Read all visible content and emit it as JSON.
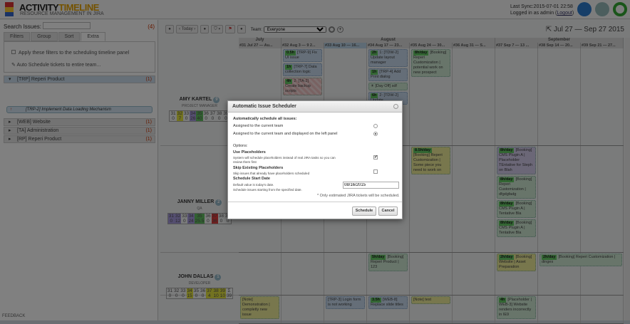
{
  "header": {
    "logo_a": "ACTIVITY",
    "logo_b": "TIMELINE",
    "tagline": "RESOURCE MANAGEMENT IN JIRA",
    "sync": "Last Sync:2015-07-01 22:58",
    "logged": "Logged in as admin (",
    "logout": "Logout",
    ")": ")",
    "close_paren": ")"
  },
  "left": {
    "search_label": "Search Issues:",
    "search_value": "",
    "count": "(4)",
    "tabs": [
      "Filters",
      "Group",
      "Sort",
      "Extra"
    ],
    "apply_filters": "Apply these filters to the scheduling timeline panel",
    "auto_schedule": "Auto Schedule tickets to entire team...",
    "groups": [
      {
        "label": "[TRP] Reperi Product",
        "count": "(1)"
      },
      {
        "label": "[WEB] Website",
        "count": "(1)"
      },
      {
        "label": "[TA] Administration",
        "count": "(1)"
      },
      {
        "label": "[RP] Reperi Product",
        "count": "(1)"
      }
    ],
    "issue": "[TRP-2] Implement Data Loading Mechanism",
    "feedback": "FEEDBACK"
  },
  "toolbar": {
    "today": "Today",
    "team_label": "Team:",
    "team_value": "Everyone",
    "range": "Jul 27 — Sep 27 2015"
  },
  "months": [
    {
      "label": "July",
      "weeks": 1
    },
    {
      "label": "August",
      "weeks": 5
    },
    {
      "label": "September",
      "weeks": 3
    }
  ],
  "weeks": [
    "#31 Jul 27 — Au...",
    "#32 Aug 3 — 9 2...",
    "#33 Aug 10 — 16...",
    "#34 Aug 17 — 23...",
    "#35 Aug 24 — 30...",
    "#36 Aug 31 — S...",
    "#37 Sep 7 — 13 ...",
    "#38 Sep 14 — 20...",
    "#39 Sep 21 — 27..."
  ],
  "current_week": "#33",
  "people": [
    {
      "name": "AMY KARTEL",
      "count": "9",
      "role": "PROJECT MANAGER",
      "weeks": [
        "31",
        "32",
        "33",
        "34",
        "35",
        "36",
        "37",
        "38",
        "39"
      ],
      "hours": [
        "0",
        "7",
        "0",
        "26",
        "40",
        "0",
        "0",
        "0",
        "0"
      ],
      "colors": [
        "",
        "#e6e640",
        "",
        "#a99be0",
        "#62c262",
        "",
        "",
        "",
        ""
      ]
    },
    {
      "name": "JANNY MILLER",
      "count": "2",
      "role": "QA",
      "weeks": [
        "31",
        "32",
        "33",
        "34",
        "35",
        "36",
        "37",
        "38",
        "39"
      ],
      "hours": [
        "0",
        "12",
        "0",
        "24",
        "25.5",
        "0",
        "36",
        "0",
        "0"
      ],
      "colors": [
        "#a99be0",
        "#a99be0",
        "",
        "#a99be0",
        "#62c262",
        "",
        "#e23b3b",
        "",
        ""
      ]
    },
    {
      "name": "JOHN DALLAS",
      "count": "1",
      "role": "DEVELOPER",
      "weeks": [
        "31",
        "32",
        "33",
        "34",
        "35",
        "36",
        "37",
        "38",
        "39",
        "Σ"
      ],
      "hours": [
        "0",
        "0",
        "0",
        "15",
        "0",
        "0",
        "4",
        "10",
        "10",
        "39"
      ],
      "colors": [
        "",
        "",
        "",
        "#e6e640",
        "",
        "",
        "#e6e640",
        "#e6e640",
        "#e6e640",
        ""
      ]
    }
  ],
  "cards": [
    {
      "row": 0,
      "week": 32,
      "est": "0.5h",
      "text": "[TRP-9] Fix UI issue",
      "color": "blue"
    },
    {
      "row": 0,
      "week": 32,
      "est": "1h",
      "text": "[TRP-7] Data collection logic",
      "color": "blue"
    },
    {
      "row": 0,
      "week": 32,
      "est": "4h",
      "text": "2: [TA-2] Create backup scripts",
      "color": "red"
    },
    {
      "row": 0,
      "week": 34,
      "est": "2h",
      "text": "1: [TDW-2] Update layout manager",
      "color": "blue"
    },
    {
      "row": 0,
      "week": 34,
      "est": "1h",
      "text": "[TRP-4] Add Print dialog",
      "color": "blue"
    },
    {
      "row": 0,
      "week": 34,
      "est": "",
      "text": "☀ [Day Off] sdf",
      "color": "green"
    },
    {
      "row": 0,
      "week": 34,
      "est": "6h",
      "text": "2: [TDW-2] Update",
      "color": "blue"
    },
    {
      "row": 0,
      "week": 35,
      "est": "8h/day",
      "text": "[Booking] Reperi Customization | potential work on new prospect",
      "color": "green"
    },
    {
      "row": 1,
      "week": 35,
      "est": "8.5h/day",
      "text": "[Booking] Reperi Customization | Some piece you need to work on",
      "color": "yellow"
    },
    {
      "row": 1,
      "week": 37,
      "est": "8h/day",
      "text": "[Booking] CMS Plugin A | Placeholder TEntative for Steph on Blah",
      "color": "purple"
    },
    {
      "row": 1,
      "week": 37,
      "est": "8h/day",
      "text": "[Booking] Reperi Customization | dfgdgfadg",
      "color": "green"
    },
    {
      "row": 1,
      "week": 37,
      "est": "8h/day",
      "text": "[Booking] CMS Plugin A | Tentative Bla",
      "color": "green"
    },
    {
      "row": 1,
      "week": 37,
      "est": "8h/day",
      "text": "[Booking] CMS Plugin A | Tentative Bla",
      "color": "green"
    },
    {
      "row": 2,
      "week": 34,
      "est": "5h/day",
      "text": "[Booking] Reperi Product | 123",
      "color": "green"
    },
    {
      "row": 2,
      "week": 37,
      "est": "2h/day",
      "text": "[Booking] Website | Asset Preparation",
      "color": "yellow"
    },
    {
      "row": 2,
      "week": 38,
      "span": 2,
      "est": "2h/day",
      "text": "[Booking] Reperi Customization | dinges",
      "color": "green"
    },
    {
      "row": 3,
      "week": 31,
      "est": "",
      "text": "[Note] Demonstration | completly new issue",
      "color": "yellow"
    },
    {
      "row": 3,
      "week": 33,
      "est": "",
      "text": "[TRP-3] Login form is not working",
      "color": "blue"
    },
    {
      "row": 3,
      "week": 34,
      "est": "3.5h",
      "text": "[WEB-8] Replace slide titles",
      "color": "blue"
    },
    {
      "row": 3,
      "week": 35,
      "est": "",
      "text": "[Note] test",
      "color": "yellow"
    },
    {
      "row": 3,
      "week": 37,
      "est": "4h",
      "text": "[Placeholder | WEB-3] Website renders incorrectly in IE9",
      "color": "green"
    }
  ],
  "modal": {
    "title": "Automatic Issue Scheduler",
    "section": "Automatically schedule all issues:",
    "opt1": "Assigned to the current team",
    "opt2": "Assigned to the current team and displayed on the left panel",
    "selected": "opt2",
    "options": "Options:",
    "ph_title": "Use Placeholders",
    "ph_desc1": "System will schedule placeholders instead of real JIRA tasks so you can",
    "ph_desc2": "review them first",
    "ph_checked": true,
    "skip_title": "Skip Existing Placeholders",
    "skip_desc": "Skip issues that already have placeholders scheduled",
    "skip_checked": false,
    "date_title": "Schedule Start Date",
    "date_desc1": "Default value is today's date.",
    "date_desc2": "Schedule issues starting from the specified date.",
    "date_value": "08/16/2015",
    "note": "* Only estimated JIRA tickets will be scheduled.",
    "schedule": "Schedule",
    "cancel": "Cancel"
  }
}
